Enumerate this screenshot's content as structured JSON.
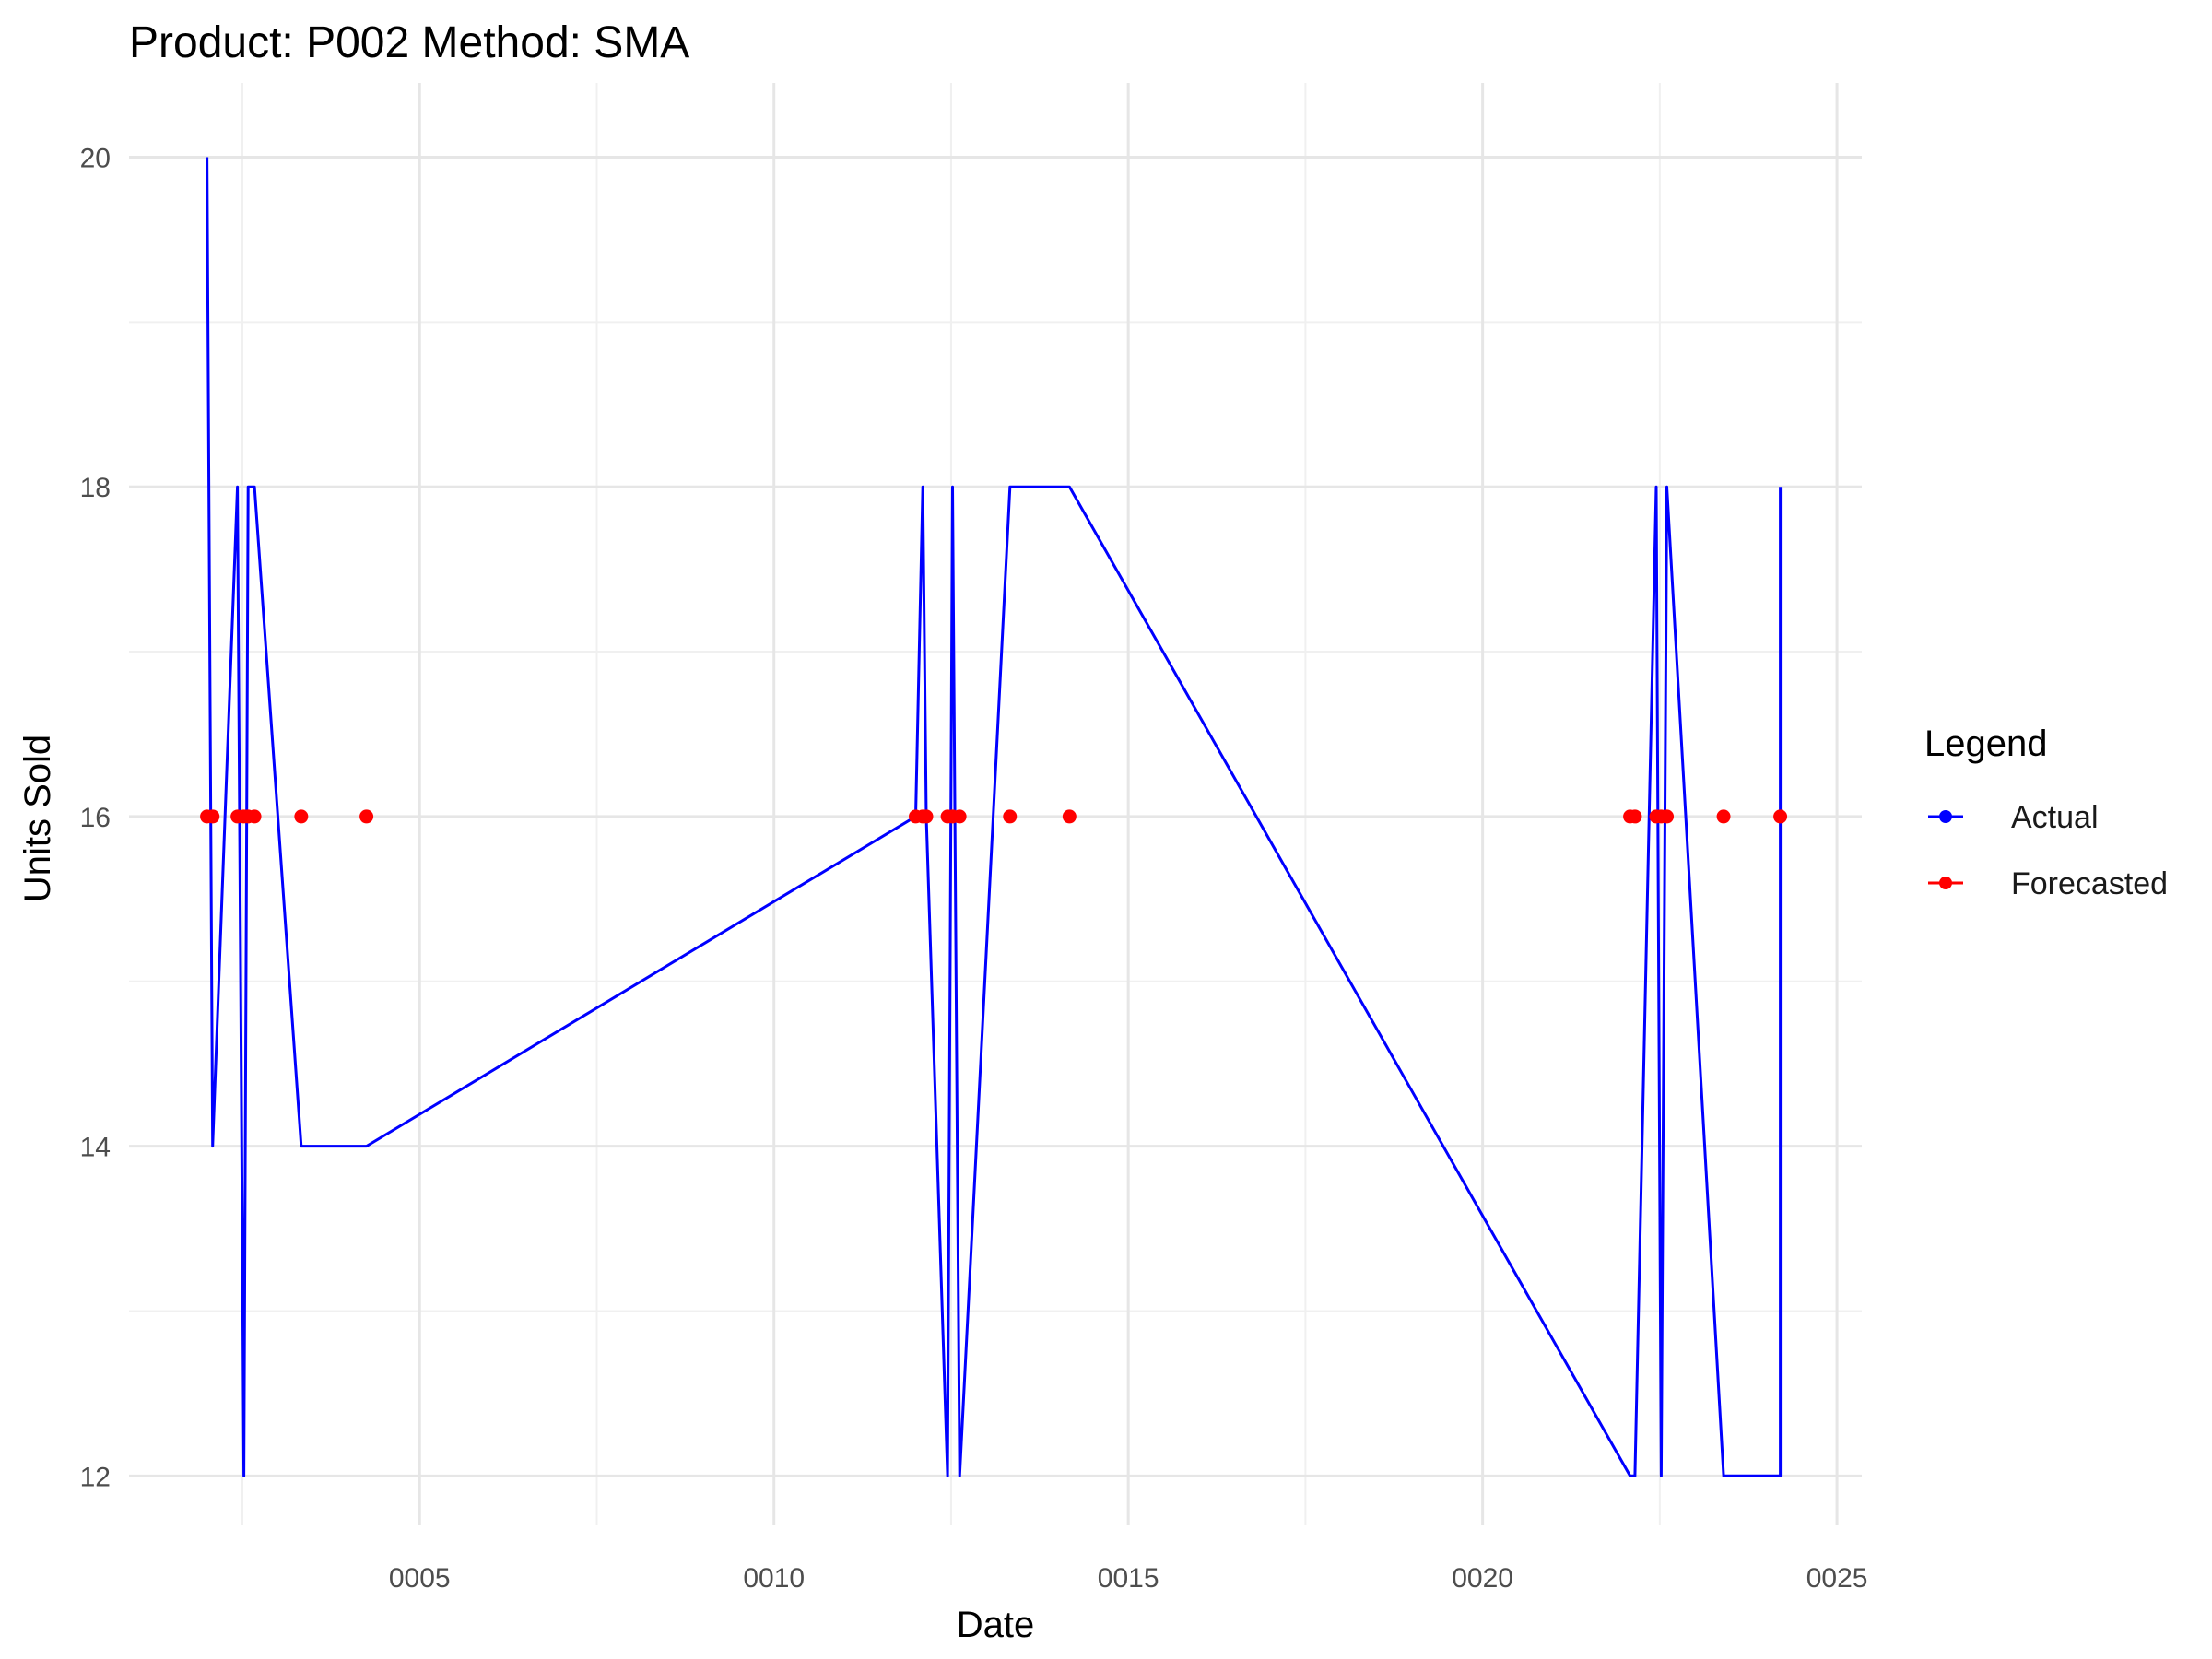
{
  "chart_data": {
    "type": "line",
    "title": "Product: P002 Method: SMA",
    "xlabel": "Date",
    "ylabel": "Units Sold",
    "x_ticks": [
      {
        "value": 5,
        "label": "0005"
      },
      {
        "value": 10,
        "label": "0010"
      },
      {
        "value": 15,
        "label": "0015"
      },
      {
        "value": 20,
        "label": "0020"
      },
      {
        "value": 25,
        "label": "0025"
      }
    ],
    "y_ticks": [
      {
        "value": 12,
        "label": "12"
      },
      {
        "value": 14,
        "label": "14"
      },
      {
        "value": 16,
        "label": "16"
      },
      {
        "value": 18,
        "label": "18"
      },
      {
        "value": 20,
        "label": "20"
      }
    ],
    "xlim": [
      0.9,
      25.35
    ],
    "ylim": [
      11.7,
      20.45
    ],
    "grid": true,
    "legend": {
      "title": "Legend",
      "position": "right",
      "entries": [
        {
          "label": "Actual",
          "color": "#0000ff"
        },
        {
          "label": "Forecasted",
          "color": "#ff0000"
        }
      ]
    },
    "series": [
      {
        "name": "Actual",
        "color": "#0000ff",
        "style": "line",
        "x": [
          2.0,
          2.08,
          2.43,
          2.52,
          2.58,
          2.67,
          3.33,
          4.25,
          12.0,
          12.1,
          12.15,
          12.45,
          12.52,
          12.62,
          13.33,
          14.17,
          22.08,
          22.15,
          22.45,
          22.52,
          22.6,
          23.4,
          24.2,
          24.2
        ],
        "y": [
          20,
          14,
          18,
          12,
          18,
          18,
          14,
          14,
          16,
          18,
          16,
          12,
          18,
          12,
          18,
          18,
          12,
          12,
          18,
          12,
          18,
          12,
          12,
          18
        ]
      },
      {
        "name": "Forecasted",
        "color": "#ff0000",
        "style": "points",
        "x": [
          2.0,
          2.08,
          2.43,
          2.52,
          2.58,
          2.67,
          3.33,
          4.25,
          12.0,
          12.1,
          12.15,
          12.45,
          12.52,
          12.62,
          13.33,
          14.17,
          22.08,
          22.15,
          22.45,
          22.52,
          22.6,
          23.4,
          24.2
        ],
        "y": [
          16,
          16,
          16,
          16,
          16,
          16,
          16,
          16,
          16,
          16,
          16,
          16,
          16,
          16,
          16,
          16,
          16,
          16,
          16,
          16,
          16,
          16,
          16
        ]
      }
    ]
  }
}
